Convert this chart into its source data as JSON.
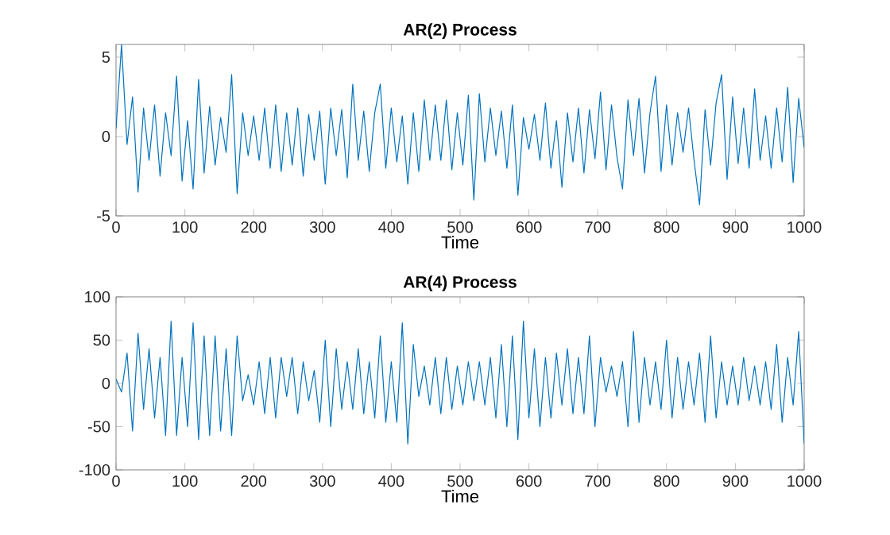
{
  "chart_data": [
    {
      "type": "line",
      "title": "AR(2) Process",
      "xlabel": "Time",
      "color": "#0072bd",
      "xlim": [
        0,
        1000
      ],
      "ylim": [
        -5,
        5.8
      ],
      "xticks": [
        0,
        100,
        200,
        300,
        400,
        500,
        600,
        700,
        800,
        900,
        1000
      ],
      "yticks": [
        -5,
        0,
        5
      ],
      "x": [
        0,
        8,
        16,
        24,
        32,
        40,
        48,
        56,
        64,
        72,
        80,
        88,
        96,
        104,
        112,
        120,
        128,
        136,
        144,
        152,
        160,
        168,
        176,
        184,
        192,
        200,
        208,
        216,
        224,
        232,
        240,
        248,
        256,
        264,
        272,
        280,
        288,
        296,
        304,
        312,
        320,
        328,
        336,
        344,
        352,
        360,
        368,
        376,
        384,
        392,
        400,
        408,
        416,
        424,
        432,
        440,
        448,
        456,
        464,
        472,
        480,
        488,
        496,
        504,
        512,
        520,
        528,
        536,
        544,
        552,
        560,
        568,
        576,
        584,
        592,
        600,
        608,
        616,
        624,
        632,
        640,
        648,
        656,
        664,
        672,
        680,
        688,
        696,
        704,
        712,
        720,
        728,
        736,
        744,
        752,
        760,
        768,
        776,
        784,
        792,
        800,
        808,
        816,
        824,
        832,
        840,
        848,
        856,
        864,
        872,
        880,
        888,
        896,
        904,
        912,
        920,
        928,
        936,
        944,
        952,
        960,
        968,
        976,
        984,
        992,
        1000
      ],
      "values": [
        0.5,
        5.8,
        -0.5,
        2.5,
        -3.5,
        1.8,
        -1.5,
        2.0,
        -2.5,
        1.5,
        -1.2,
        3.8,
        -2.8,
        1.0,
        -3.3,
        3.6,
        -2.3,
        1.9,
        -1.8,
        1.2,
        -1.0,
        3.9,
        -3.6,
        1.5,
        -1.2,
        1.3,
        -1.5,
        1.8,
        -2.0,
        2.0,
        -2.2,
        1.5,
        -1.8,
        1.8,
        -2.5,
        1.4,
        -1.5,
        1.6,
        -3.0,
        1.8,
        -1.2,
        1.7,
        -2.6,
        3.3,
        -1.5,
        1.6,
        -2.2,
        1.5,
        3.3,
        -2.0,
        1.8,
        -1.6,
        1.3,
        -3.0,
        1.5,
        -2.2,
        2.3,
        -1.5,
        2.0,
        -1.5,
        2.3,
        -2.1,
        1.5,
        -1.8,
        2.6,
        -4.0,
        2.7,
        -1.6,
        1.8,
        -1.2,
        1.6,
        -2.0,
        2.0,
        -3.7,
        1.2,
        -0.8,
        1.4,
        -1.5,
        2.1,
        -2.0,
        1.0,
        -3.2,
        1.5,
        -1.6,
        1.8,
        -2.3,
        1.7,
        -1.4,
        2.8,
        -2.1,
        2.0,
        -1.3,
        -3.3,
        2.3,
        -1.2,
        2.4,
        -2.3,
        1.5,
        3.8,
        -2.2,
        2.0,
        -1.8,
        1.5,
        -1.0,
        1.8,
        -1.5,
        -4.3,
        1.7,
        -1.8,
        2.1,
        3.9,
        -2.7,
        2.5,
        -1.7,
        1.8,
        -2.0,
        3.0,
        -1.5,
        1.3,
        -2.0,
        1.8,
        -1.6,
        3.1,
        -2.9,
        2.4,
        -0.7
      ]
    },
    {
      "type": "line",
      "title": "AR(4) Process",
      "xlabel": "Time",
      "color": "#0072bd",
      "xlim": [
        0,
        1000
      ],
      "ylim": [
        -100,
        100
      ],
      "xticks": [
        0,
        100,
        200,
        300,
        400,
        500,
        600,
        700,
        800,
        900,
        1000
      ],
      "yticks": [
        -100,
        -50,
        0,
        50,
        100
      ],
      "x": [
        0,
        8,
        16,
        24,
        32,
        40,
        48,
        56,
        64,
        72,
        80,
        88,
        96,
        104,
        112,
        120,
        128,
        136,
        144,
        152,
        160,
        168,
        176,
        184,
        192,
        200,
        208,
        216,
        224,
        232,
        240,
        248,
        256,
        264,
        272,
        280,
        288,
        296,
        304,
        312,
        320,
        328,
        336,
        344,
        352,
        360,
        368,
        376,
        384,
        392,
        400,
        408,
        416,
        424,
        432,
        440,
        448,
        456,
        464,
        472,
        480,
        488,
        496,
        504,
        512,
        520,
        528,
        536,
        544,
        552,
        560,
        568,
        576,
        584,
        592,
        600,
        608,
        616,
        624,
        632,
        640,
        648,
        656,
        664,
        672,
        680,
        688,
        696,
        704,
        712,
        720,
        728,
        736,
        744,
        752,
        760,
        768,
        776,
        784,
        792,
        800,
        808,
        816,
        824,
        832,
        840,
        848,
        856,
        864,
        872,
        880,
        888,
        896,
        904,
        912,
        920,
        928,
        936,
        944,
        952,
        960,
        968,
        976,
        984,
        992,
        1000
      ],
      "values": [
        5,
        -10,
        35,
        -55,
        58,
        -30,
        40,
        -40,
        30,
        -60,
        72,
        -60,
        30,
        -50,
        70,
        -65,
        55,
        -60,
        55,
        -55,
        40,
        -60,
        55,
        -20,
        10,
        -25,
        25,
        -35,
        30,
        -40,
        30,
        -15,
        30,
        -35,
        25,
        -20,
        15,
        -45,
        50,
        -50,
        40,
        -30,
        25,
        -30,
        40,
        -35,
        25,
        -40,
        55,
        -45,
        25,
        -45,
        70,
        -70,
        45,
        -15,
        20,
        -25,
        30,
        -35,
        30,
        -30,
        20,
        -25,
        25,
        -20,
        25,
        -25,
        30,
        -40,
        45,
        -50,
        55,
        -65,
        72,
        -40,
        40,
        -50,
        30,
        -40,
        35,
        -25,
        40,
        -35,
        30,
        -35,
        55,
        -50,
        30,
        -10,
        20,
        -15,
        25,
        -50,
        60,
        -45,
        30,
        -25,
        25,
        -30,
        50,
        -40,
        30,
        -30,
        25,
        -25,
        35,
        -45,
        55,
        -40,
        25,
        -25,
        20,
        -25,
        30,
        -20,
        20,
        -25,
        25,
        -30,
        45,
        -45,
        30,
        -25,
        60,
        -70
      ]
    }
  ]
}
